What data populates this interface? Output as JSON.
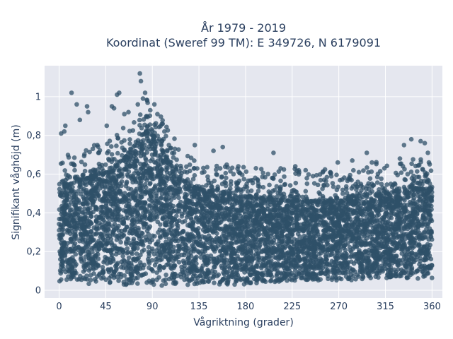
{
  "chart_data": {
    "type": "scatter",
    "title_line1": "År 1979 - 2019",
    "title_line2": "Koordinat (Sweref 99 TM): E 349726, N 6179091",
    "xlabel": "Vågriktning (grader)",
    "ylabel": "Signifikant våghöjd (m)",
    "xlim": [
      -14,
      370
    ],
    "ylim": [
      -0.04,
      1.16
    ],
    "xticks": [
      0,
      45,
      90,
      135,
      180,
      225,
      270,
      315,
      360
    ],
    "xtick_labels": [
      "0",
      "45",
      "90",
      "135",
      "180",
      "225",
      "270",
      "315",
      "360"
    ],
    "yticks": [
      0,
      0.2,
      0.4,
      0.6,
      0.8,
      1
    ],
    "ytick_labels": [
      "0",
      "0,2",
      "0,4",
      "0,6",
      "0,8",
      "1"
    ],
    "grid": true,
    "legend": "none",
    "marker_color": "#2f5068",
    "band_lower": [
      [
        0,
        0.04
      ],
      [
        20,
        0.04
      ],
      [
        45,
        0.02
      ],
      [
        90,
        0.02
      ],
      [
        135,
        0.03
      ],
      [
        180,
        0.03
      ],
      [
        225,
        0.05
      ],
      [
        270,
        0.05
      ],
      [
        315,
        0.06
      ],
      [
        360,
        0.06
      ]
    ],
    "band_upper": [
      [
        0,
        0.52
      ],
      [
        15,
        0.56
      ],
      [
        30,
        0.58
      ],
      [
        45,
        0.6
      ],
      [
        60,
        0.66
      ],
      [
        75,
        0.76
      ],
      [
        85,
        0.82
      ],
      [
        95,
        0.78
      ],
      [
        105,
        0.66
      ],
      [
        120,
        0.56
      ],
      [
        135,
        0.52
      ],
      [
        160,
        0.5
      ],
      [
        180,
        0.48
      ],
      [
        225,
        0.46
      ],
      [
        270,
        0.46
      ],
      [
        315,
        0.5
      ],
      [
        345,
        0.52
      ],
      [
        360,
        0.52
      ]
    ],
    "outliers": [
      {
        "x": 2,
        "y": 0.81
      },
      {
        "x": 5,
        "y": 0.82
      },
      {
        "x": 6,
        "y": 0.85
      },
      {
        "x": 12,
        "y": 1.02
      },
      {
        "x": 17,
        "y": 0.96
      },
      {
        "x": 20,
        "y": 0.88
      },
      {
        "x": 27,
        "y": 0.95
      },
      {
        "x": 28,
        "y": 0.92
      },
      {
        "x": 37,
        "y": 0.75
      },
      {
        "x": 46,
        "y": 0.85
      },
      {
        "x": 51,
        "y": 0.95
      },
      {
        "x": 53,
        "y": 0.94
      },
      {
        "x": 56,
        "y": 1.01
      },
      {
        "x": 58,
        "y": 1.02
      },
      {
        "x": 63,
        "y": 0.91
      },
      {
        "x": 67,
        "y": 0.92
      },
      {
        "x": 76,
        "y": 0.96
      },
      {
        "x": 78,
        "y": 1.12
      },
      {
        "x": 79,
        "y": 1.08
      },
      {
        "x": 81,
        "y": 0.99
      },
      {
        "x": 83,
        "y": 1.02
      },
      {
        "x": 85,
        "y": 0.98
      },
      {
        "x": 88,
        "y": 0.93
      },
      {
        "x": 92,
        "y": 0.96
      },
      {
        "x": 100,
        "y": 0.86
      },
      {
        "x": 106,
        "y": 0.75
      },
      {
        "x": 131,
        "y": 0.75
      },
      {
        "x": 149,
        "y": 0.72
      },
      {
        "x": 158,
        "y": 0.74
      },
      {
        "x": 173,
        "y": 0.64
      },
      {
        "x": 190,
        "y": 0.63
      },
      {
        "x": 207,
        "y": 0.71
      },
      {
        "x": 228,
        "y": 0.64
      },
      {
        "x": 238,
        "y": 0.62
      },
      {
        "x": 262,
        "y": 0.61
      },
      {
        "x": 269,
        "y": 0.66
      },
      {
        "x": 283,
        "y": 0.67
      },
      {
        "x": 297,
        "y": 0.71
      },
      {
        "x": 302,
        "y": 0.66
      },
      {
        "x": 329,
        "y": 0.68
      },
      {
        "x": 333,
        "y": 0.75
      },
      {
        "x": 340,
        "y": 0.78
      },
      {
        "x": 349,
        "y": 0.77
      },
      {
        "x": 353,
        "y": 0.76
      },
      {
        "x": 356,
        "y": 0.71
      },
      {
        "x": 357,
        "y": 0.66
      }
    ]
  }
}
